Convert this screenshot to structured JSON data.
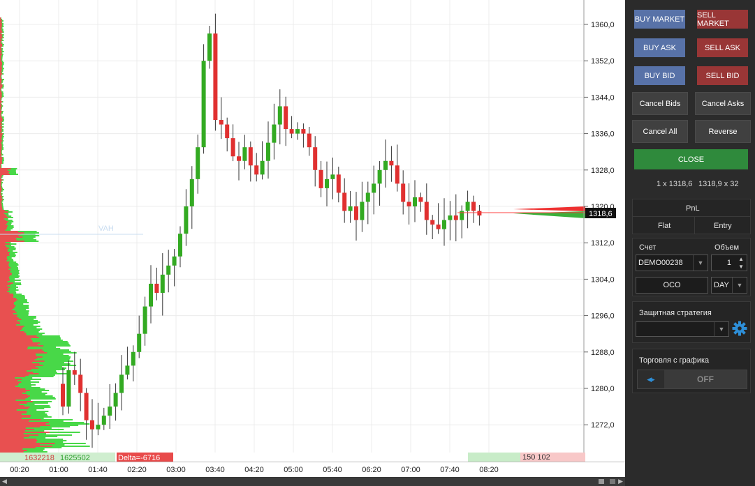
{
  "chart": {
    "y_axis_labels": [
      "1360,0",
      "1352,0",
      "1344,0",
      "1336,0",
      "1328,0",
      "1320,0",
      "1312,0",
      "1304,0",
      "1296,0",
      "1288,0",
      "1280,0",
      "1272,0"
    ],
    "x_axis_labels": [
      "00:20",
      "01:00",
      "01:40",
      "02:20",
      "03:00",
      "03:40",
      "04:20",
      "05:00",
      "05:40",
      "06:20",
      "07:00",
      "07:40",
      "08:20"
    ],
    "current_price": "1318,6",
    "vah_label": "VAH",
    "footer": {
      "volume_sell": "1632218",
      "volume_buy": "1625502",
      "delta": "Delta=-6716",
      "right_volume": "150 102"
    },
    "colors": {
      "up": "#33aa22",
      "down": "#e03030",
      "profile_sell": "#e85050",
      "profile_buy": "#48d848"
    }
  },
  "trading_panel": {
    "buy_market": "BUY MARKET",
    "sell_market": "SELL MARKET",
    "buy_ask": "BUY ASK",
    "sell_ask": "SELL ASK",
    "buy_bid": "BUY BID",
    "sell_bid": "SELL BID",
    "cancel_bids": "Cancel Bids",
    "cancel_asks": "Cancel Asks",
    "cancel_all": "Cancel All",
    "reverse": "Reverse",
    "close": "CLOSE",
    "bid_quote": "1 x 1318,6",
    "ask_quote": "1318,9 x 32",
    "pnl": "PnL",
    "flat": "Flat",
    "entry": "Entry",
    "account_label": "Счет",
    "volume_label": "Объем",
    "account_value": "DEMO00238",
    "volume_value": "1",
    "oco": "OCO",
    "tif": "DAY",
    "protective_label": "Защитная стратегия",
    "protective_value": "",
    "chart_trading_label": "Торговля с графика",
    "chart_trading_state": "OFF"
  }
}
